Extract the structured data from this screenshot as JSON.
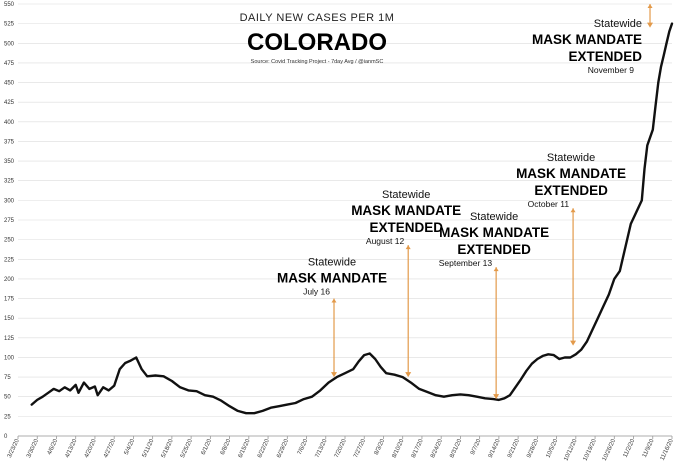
{
  "chart_data": {
    "type": "line",
    "title": "DAILY NEW CASES PER 1M",
    "subtitle": "COLORADO",
    "source": "Source: Covid Tracking Project - 7day Avg / @ianmSC",
    "ylim": [
      0,
      550
    ],
    "yticks": [
      0,
      25,
      50,
      75,
      100,
      125,
      150,
      175,
      200,
      225,
      250,
      275,
      300,
      325,
      350,
      375,
      400,
      425,
      450,
      475,
      500,
      525,
      550
    ],
    "xlim_days": [
      0,
      238
    ],
    "xticks": [
      {
        "label": "3/23/20",
        "day": 0
      },
      {
        "label": "3/30/20",
        "day": 7
      },
      {
        "label": "4/6/20",
        "day": 14
      },
      {
        "label": "4/13/20",
        "day": 21
      },
      {
        "label": "4/20/20",
        "day": 28
      },
      {
        "label": "4/27/20",
        "day": 35
      },
      {
        "label": "5/4/20",
        "day": 42
      },
      {
        "label": "5/11/20",
        "day": 49
      },
      {
        "label": "5/18/20",
        "day": 56
      },
      {
        "label": "5/25/20",
        "day": 63
      },
      {
        "label": "6/1/20",
        "day": 70
      },
      {
        "label": "6/8/20",
        "day": 77
      },
      {
        "label": "6/15/20",
        "day": 84
      },
      {
        "label": "6/22/20",
        "day": 91
      },
      {
        "label": "6/29/20",
        "day": 98
      },
      {
        "label": "7/6/20",
        "day": 105
      },
      {
        "label": "7/13/20",
        "day": 112
      },
      {
        "label": "7/20/20",
        "day": 119
      },
      {
        "label": "7/27/20",
        "day": 126
      },
      {
        "label": "8/3/20",
        "day": 133
      },
      {
        "label": "8/10/20",
        "day": 140
      },
      {
        "label": "8/17/20",
        "day": 147
      },
      {
        "label": "8/24/20",
        "day": 154
      },
      {
        "label": "8/31/20",
        "day": 161
      },
      {
        "label": "9/7/20",
        "day": 168
      },
      {
        "label": "9/14/20",
        "day": 175
      },
      {
        "label": "9/21/20",
        "day": 182
      },
      {
        "label": "9/28/20",
        "day": 189
      },
      {
        "label": "10/5/20",
        "day": 196
      },
      {
        "label": "10/12/20",
        "day": 203
      },
      {
        "label": "10/19/20",
        "day": 210
      },
      {
        "label": "10/26/20",
        "day": 217
      },
      {
        "label": "11/2/20",
        "day": 224
      },
      {
        "label": "11/9/20",
        "day": 231
      },
      {
        "label": "11/16/20",
        "day": 238
      }
    ],
    "series": [
      {
        "values": [
          [
            5,
            40
          ],
          [
            7,
            46
          ],
          [
            9,
            50
          ],
          [
            11,
            55
          ],
          [
            13,
            60
          ],
          [
            15,
            57
          ],
          [
            17,
            62
          ],
          [
            19,
            58
          ],
          [
            21,
            65
          ],
          [
            22,
            55
          ],
          [
            24,
            68
          ],
          [
            26,
            60
          ],
          [
            28,
            63
          ],
          [
            29,
            52
          ],
          [
            31,
            62
          ],
          [
            33,
            58
          ],
          [
            35,
            64
          ],
          [
            37,
            85
          ],
          [
            39,
            93
          ],
          [
            41,
            96
          ],
          [
            43,
            100
          ],
          [
            45,
            85
          ],
          [
            47,
            76
          ],
          [
            50,
            77
          ],
          [
            53,
            76
          ],
          [
            56,
            70
          ],
          [
            59,
            62
          ],
          [
            62,
            58
          ],
          [
            65,
            57
          ],
          [
            68,
            52
          ],
          [
            71,
            50
          ],
          [
            74,
            45
          ],
          [
            77,
            38
          ],
          [
            80,
            32
          ],
          [
            83,
            29
          ],
          [
            86,
            29
          ],
          [
            89,
            32
          ],
          [
            92,
            36
          ],
          [
            95,
            38
          ],
          [
            98,
            40
          ],
          [
            101,
            42
          ],
          [
            104,
            47
          ],
          [
            107,
            50
          ],
          [
            110,
            58
          ],
          [
            113,
            68
          ],
          [
            116,
            75
          ],
          [
            119,
            80
          ],
          [
            122,
            85
          ],
          [
            124,
            95
          ],
          [
            126,
            103
          ],
          [
            128,
            105
          ],
          [
            130,
            98
          ],
          [
            132,
            88
          ],
          [
            134,
            80
          ],
          [
            137,
            78
          ],
          [
            140,
            75
          ],
          [
            143,
            68
          ],
          [
            146,
            60
          ],
          [
            149,
            56
          ],
          [
            152,
            52
          ],
          [
            155,
            50
          ],
          [
            158,
            52
          ],
          [
            161,
            53
          ],
          [
            164,
            52
          ],
          [
            167,
            50
          ],
          [
            170,
            48
          ],
          [
            173,
            47
          ],
          [
            175,
            46
          ],
          [
            177,
            48
          ],
          [
            179,
            52
          ],
          [
            181,
            62
          ],
          [
            183,
            72
          ],
          [
            185,
            83
          ],
          [
            187,
            92
          ],
          [
            189,
            98
          ],
          [
            191,
            102
          ],
          [
            193,
            104
          ],
          [
            195,
            103
          ],
          [
            197,
            98
          ],
          [
            199,
            100
          ],
          [
            201,
            100
          ],
          [
            203,
            104
          ],
          [
            205,
            110
          ],
          [
            207,
            120
          ],
          [
            209,
            135
          ],
          [
            211,
            150
          ],
          [
            213,
            165
          ],
          [
            215,
            180
          ],
          [
            217,
            200
          ],
          [
            219,
            210
          ],
          [
            221,
            240
          ],
          [
            223,
            270
          ],
          [
            225,
            285
          ],
          [
            227,
            300
          ],
          [
            228,
            340
          ],
          [
            229,
            370
          ],
          [
            231,
            390
          ],
          [
            232,
            420
          ],
          [
            233,
            450
          ],
          [
            234,
            470
          ],
          [
            235,
            485
          ],
          [
            236,
            500
          ],
          [
            237,
            515
          ],
          [
            238,
            525
          ]
        ]
      }
    ],
    "annotations": [
      {
        "lines": [
          "Statewide",
          "MASK MANDATE"
        ],
        "date": "July 16",
        "day": 115,
        "y_end": 75,
        "y_top": 175
      },
      {
        "lines": [
          "Statewide",
          "MASK MANDATE",
          "EXTENDED"
        ],
        "date": "August 12",
        "day": 142,
        "y_end": 75,
        "y_top": 243
      },
      {
        "lines": [
          "Statewide",
          "MASK MANDATE",
          "EXTENDED"
        ],
        "date": "September 13",
        "day": 174,
        "y_end": 47,
        "y_top": 215
      },
      {
        "lines": [
          "Statewide",
          "MASK MANDATE",
          "EXTENDED"
        ],
        "date": "October 11",
        "day": 202,
        "y_end": 115,
        "y_top": 290
      },
      {
        "lines": [
          "Statewide",
          "MASK MANDATE",
          "EXTENDED"
        ],
        "date": "November 9",
        "day": 230,
        "y_end": 520,
        "y_top": 550
      }
    ]
  }
}
